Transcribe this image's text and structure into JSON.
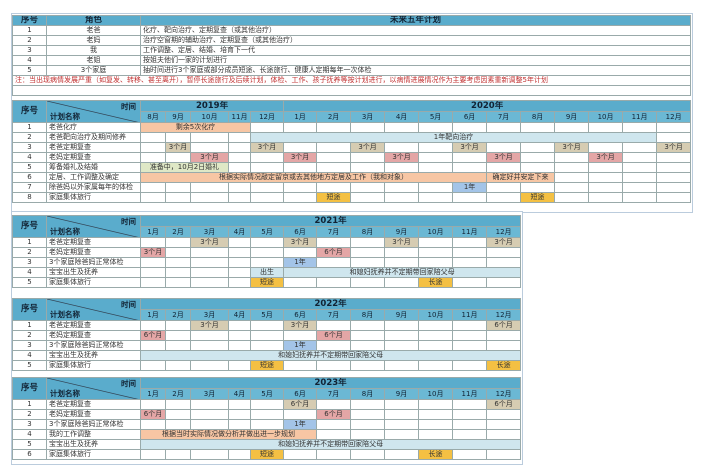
{
  "colors": {
    "header": "#5aaccc",
    "tan": "#d6ccb2",
    "pink": "#e4a6a6",
    "peach": "#f7c6a4",
    "lightblue": "#cfe6ee",
    "blue": "#a3c4e8",
    "orange": "#f4c043",
    "green": "#dfe8c6"
  },
  "top": {
    "headers": [
      "序号",
      "角色",
      "未来五年计划"
    ],
    "rows": [
      [
        "1",
        "老爸",
        "化疗、靶向治疗、定期复查（或其他治疗）"
      ],
      [
        "2",
        "老妈",
        "治疗空窗期的辅助治疗、定期复查（或其他治疗）"
      ],
      [
        "3",
        "我",
        "工作调整、定居、结婚、培育下一代"
      ],
      [
        "4",
        "老姐",
        "按姐夫他们一家的计划进行"
      ],
      [
        "5",
        "3个家庭",
        "抽时间进行3个家庭或部分成员短途、长途旅行、健康人定期每年一次体检"
      ]
    ],
    "note": "注：当出现病情发展严重（如复发、转移、甚至离开），暂停长途旅行及后续计划，体检、工作、孩子抚养等按计划进行，以病情进展情况作为主要考虑因素重新调整5年计划"
  },
  "gantt": [
    {
      "seq_label": "序号",
      "time_label": "时间",
      "name_label": "计划名称",
      "years": [
        {
          "label": "2019年",
          "months": [
            "8月",
            "9月",
            "10月",
            "11月",
            "12月"
          ]
        },
        {
          "label": "2020年",
          "months": [
            "1月",
            "2月",
            "3月",
            "4月",
            "5月",
            "6月",
            "7月",
            "8月",
            "9月",
            "10月",
            "11月",
            "12月"
          ]
        }
      ],
      "rows": [
        {
          "no": "1",
          "name": "老爸化疗",
          "segs": [
            {
              "from": 0,
              "to": 3,
              "text": "剩余5次化疗",
              "color": "peach"
            }
          ]
        },
        {
          "no": "2",
          "name": "老爸靶向治疗及期间修养",
          "segs": [
            {
              "from": 4,
              "to": 15,
              "text": "1年靶向治疗",
              "color": "lightblue"
            }
          ]
        },
        {
          "no": "3",
          "name": "老爸定期复查",
          "segs": [
            {
              "from": 1,
              "to": 1,
              "text": "3个月",
              "color": "tan"
            },
            {
              "from": 4,
              "to": 4,
              "text": "3个月",
              "color": "tan"
            },
            {
              "from": 7,
              "to": 7,
              "text": "3个月",
              "color": "tan"
            },
            {
              "from": 10,
              "to": 10,
              "text": "3个月",
              "color": "tan"
            },
            {
              "from": 13,
              "to": 13,
              "text": "3个月",
              "color": "tan"
            },
            {
              "from": 16,
              "to": 16,
              "text": "3个月",
              "color": "tan"
            }
          ]
        },
        {
          "no": "4",
          "name": "老妈定期复查",
          "segs": [
            {
              "from": 2,
              "to": 2,
              "text": "3个月",
              "color": "pink"
            },
            {
              "from": 5,
              "to": 5,
              "text": "3个月",
              "color": "pink"
            },
            {
              "from": 8,
              "to": 8,
              "text": "3个月",
              "color": "pink"
            },
            {
              "from": 11,
              "to": 11,
              "text": "3个月",
              "color": "pink"
            },
            {
              "from": 14,
              "to": 14,
              "text": "3个月",
              "color": "pink"
            }
          ]
        },
        {
          "no": "5",
          "name": "筹备婚礼及结婚",
          "segs": [
            {
              "from": 0,
              "to": 2,
              "text": "准备中，10月2日婚礼",
              "color": "green"
            }
          ]
        },
        {
          "no": "6",
          "name": "定居、工作调整及确定",
          "segs": [
            {
              "from": 0,
              "to": 10,
              "text": "根据实际情况敲定留京或去其他地方定居及工作（我和对象）",
              "color": "peach"
            },
            {
              "from": 11,
              "to": 12,
              "text": "确定好并安定下来",
              "color": "peach"
            }
          ]
        },
        {
          "no": "7",
          "name": "除爸妈以外家属每年的体检",
          "segs": [
            {
              "from": 10,
              "to": 10,
              "text": "1年",
              "color": "blue"
            }
          ]
        },
        {
          "no": "8",
          "name": "家庭集体旅行",
          "segs": [
            {
              "from": 6,
              "to": 6,
              "text": "短途",
              "color": "orange"
            },
            {
              "from": 12,
              "to": 12,
              "text": "短途",
              "color": "orange"
            }
          ]
        }
      ]
    },
    {
      "seq_label": "序号",
      "time_label": "时间",
      "name_label": "计划名称",
      "years": [
        {
          "label": "2021年",
          "months": [
            "1月",
            "2月",
            "3月",
            "4月",
            "5月",
            "6月",
            "7月",
            "8月",
            "9月",
            "10月",
            "11月",
            "12月"
          ]
        }
      ],
      "rows": [
        {
          "no": "1",
          "name": "老爸定期复查",
          "segs": [
            {
              "from": 2,
              "to": 2,
              "text": "3个月",
              "color": "tan"
            },
            {
              "from": 5,
              "to": 5,
              "text": "3个月",
              "color": "tan"
            },
            {
              "from": 8,
              "to": 8,
              "text": "3个月",
              "color": "tan"
            },
            {
              "from": 11,
              "to": 11,
              "text": "3个月",
              "color": "tan"
            }
          ]
        },
        {
          "no": "2",
          "name": "老妈定期复查",
          "segs": [
            {
              "from": 0,
              "to": 0,
              "text": "3个月",
              "color": "pink"
            },
            {
              "from": 6,
              "to": 6,
              "text": "6个月",
              "color": "pink"
            }
          ]
        },
        {
          "no": "3",
          "name": "3个家庭除爸妈正常体检",
          "segs": [
            {
              "from": 5,
              "to": 5,
              "text": "1年",
              "color": "blue"
            }
          ]
        },
        {
          "no": "4",
          "name": "宝宝出生及抚养",
          "segs": [
            {
              "from": 4,
              "to": 4,
              "text": "出生",
              "color": "lightblue"
            },
            {
              "from": 5,
              "to": 11,
              "text": "和媳妇抚养并不定期带回家陪父母",
              "color": "lightblue"
            }
          ]
        },
        {
          "no": "5",
          "name": "家庭集体旅行",
          "segs": [
            {
              "from": 4,
              "to": 4,
              "text": "短途",
              "color": "orange"
            },
            {
              "from": 9,
              "to": 9,
              "text": "长途",
              "color": "orange"
            }
          ]
        }
      ]
    },
    {
      "seq_label": "序号",
      "time_label": "时间",
      "name_label": "计划名称",
      "years": [
        {
          "label": "2022年",
          "months": [
            "1月",
            "2月",
            "3月",
            "4月",
            "5月",
            "6月",
            "7月",
            "8月",
            "9月",
            "10月",
            "11月",
            "12月"
          ]
        }
      ],
      "rows": [
        {
          "no": "1",
          "name": "老爸定期复查",
          "segs": [
            {
              "from": 2,
              "to": 2,
              "text": "3个月",
              "color": "tan"
            },
            {
              "from": 5,
              "to": 5,
              "text": "3个月",
              "color": "tan"
            },
            {
              "from": 11,
              "to": 11,
              "text": "6个月",
              "color": "tan"
            }
          ]
        },
        {
          "no": "2",
          "name": "老妈定期复查",
          "segs": [
            {
              "from": 0,
              "to": 0,
              "text": "6个月",
              "color": "pink"
            },
            {
              "from": 6,
              "to": 6,
              "text": "6个月",
              "color": "pink"
            }
          ]
        },
        {
          "no": "3",
          "name": "3个家庭除爸妈正常体检",
          "segs": [
            {
              "from": 5,
              "to": 5,
              "text": "1年",
              "color": "blue"
            }
          ]
        },
        {
          "no": "4",
          "name": "宝宝出生及抚养",
          "segs": [
            {
              "from": 0,
              "to": 11,
              "text": "和媳妇抚养并不定期带回家陪父母",
              "color": "lightblue"
            }
          ]
        },
        {
          "no": "5",
          "name": "家庭集体旅行",
          "segs": [
            {
              "from": 4,
              "to": 4,
              "text": "短途",
              "color": "orange"
            },
            {
              "from": 11,
              "to": 11,
              "text": "长途",
              "color": "orange"
            }
          ]
        }
      ]
    },
    {
      "seq_label": "序号",
      "time_label": "时间",
      "name_label": "计划名称",
      "years": [
        {
          "label": "2023年",
          "months": [
            "1月",
            "2月",
            "3月",
            "4月",
            "5月",
            "6月",
            "7月",
            "8月",
            "9月",
            "10月",
            "11月",
            "12月"
          ]
        }
      ],
      "rows": [
        {
          "no": "1",
          "name": "老爸定期复查",
          "segs": [
            {
              "from": 5,
              "to": 5,
              "text": "6个月",
              "color": "tan"
            },
            {
              "from": 11,
              "to": 11,
              "text": "6个月",
              "color": "tan"
            }
          ]
        },
        {
          "no": "2",
          "name": "老妈定期复查",
          "segs": [
            {
              "from": 0,
              "to": 0,
              "text": "6个月",
              "color": "pink"
            },
            {
              "from": 6,
              "to": 6,
              "text": "6个月",
              "color": "pink"
            }
          ]
        },
        {
          "no": "3",
          "name": "3个家庭除爸妈正常体检",
          "segs": [
            {
              "from": 5,
              "to": 5,
              "text": "1年",
              "color": "blue"
            }
          ]
        },
        {
          "no": "4",
          "name": "我的工作调整",
          "segs": [
            {
              "from": 0,
              "to": 5,
              "text": "根据当时实际情况做分析并做出进一步规划",
              "color": "peach"
            }
          ]
        },
        {
          "no": "5",
          "name": "宝宝出生及抚养",
          "segs": [
            {
              "from": 0,
              "to": 11,
              "text": "和媳妇抚养并不定期带回家陪父母",
              "color": "lightblue"
            }
          ]
        },
        {
          "no": "6",
          "name": "家庭集体旅行",
          "segs": [
            {
              "from": 4,
              "to": 4,
              "text": "短途",
              "color": "orange"
            },
            {
              "from": 9,
              "to": 9,
              "text": "长途",
              "color": "orange"
            }
          ]
        }
      ]
    }
  ]
}
